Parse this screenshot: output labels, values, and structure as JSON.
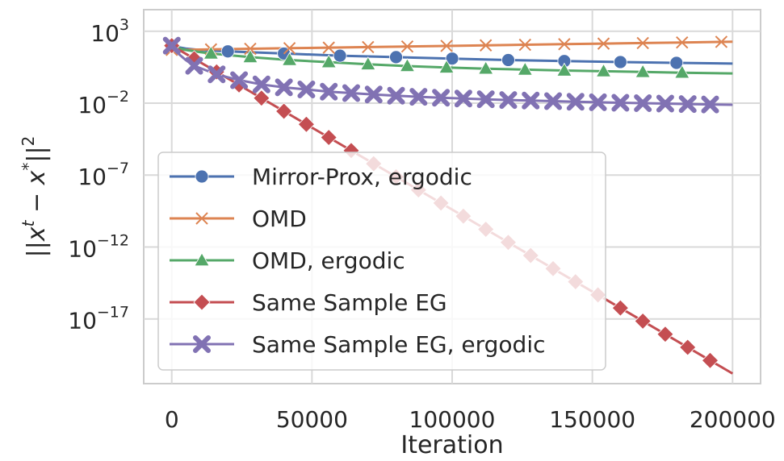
{
  "chart_data": {
    "type": "line",
    "title": "",
    "xlabel": "Iteration",
    "ylabel": "||x^t − x^*||^2",
    "x_ticks": [
      "0",
      "50000",
      "100000",
      "150000",
      "200000"
    ],
    "y_ticks": [
      {
        "base": "10",
        "exp": "3"
      },
      {
        "base": "10",
        "exp": "−2"
      },
      {
        "base": "10",
        "exp": "−7"
      },
      {
        "base": "10",
        "exp": "−12"
      },
      {
        "base": "10",
        "exp": "−17"
      }
    ],
    "xlim": [
      -10000,
      210000
    ],
    "ylim_log10": [
      -21.5,
      4.5
    ],
    "yscale": "log",
    "grid": true,
    "legend_position": "center-left",
    "series": [
      {
        "name": "Mirror-Prox, ergodic",
        "color": "#4c72b0",
        "marker": "circle",
        "x": [
          0,
          2000,
          5000,
          10000,
          20000,
          40000,
          60000,
          80000,
          100000,
          120000,
          140000,
          160000,
          180000,
          200000
        ],
        "log10_y": [
          2.0,
          1.9,
          1.8,
          1.7,
          1.6,
          1.45,
          1.3,
          1.2,
          1.1,
          1.0,
          0.93,
          0.86,
          0.8,
          0.75
        ],
        "marker_x": [
          0,
          20000,
          40000,
          60000,
          80000,
          100000,
          120000,
          140000,
          160000,
          180000
        ]
      },
      {
        "name": "OMD",
        "color": "#dd8452",
        "marker": "x",
        "x": [
          0,
          14000,
          28000,
          42000,
          56000,
          70000,
          84000,
          98000,
          112000,
          126000,
          140000,
          154000,
          168000,
          182000,
          196000,
          200000
        ],
        "log10_y": [
          1.7,
          1.74,
          1.78,
          1.82,
          1.86,
          1.9,
          1.94,
          1.98,
          2.02,
          2.06,
          2.1,
          2.14,
          2.18,
          2.22,
          2.26,
          2.27
        ],
        "marker_x": [
          0,
          14000,
          28000,
          42000,
          56000,
          70000,
          84000,
          98000,
          112000,
          126000,
          140000,
          154000,
          168000,
          182000,
          196000
        ]
      },
      {
        "name": "OMD, ergodic",
        "color": "#55a868",
        "marker": "triangle",
        "x": [
          0,
          2000,
          5000,
          10000,
          14000,
          28000,
          42000,
          56000,
          70000,
          84000,
          98000,
          112000,
          126000,
          140000,
          154000,
          168000,
          182000,
          200000
        ],
        "log10_y": [
          2.0,
          1.85,
          1.7,
          1.55,
          1.45,
          1.2,
          1.0,
          0.85,
          0.7,
          0.58,
          0.48,
          0.4,
          0.33,
          0.27,
          0.22,
          0.17,
          0.12,
          0.07
        ],
        "marker_x": [
          0,
          14000,
          28000,
          42000,
          56000,
          70000,
          84000,
          98000,
          112000,
          126000,
          140000,
          154000,
          168000,
          182000
        ]
      },
      {
        "name": "Same Sample EG",
        "color": "#c44e52",
        "marker": "diamond",
        "x": [
          0,
          200000
        ],
        "log10_y": [
          2.0,
          -20.8
        ],
        "marker_x": [
          0,
          8000,
          16000,
          24000,
          32000,
          40000,
          48000,
          56000,
          64000,
          72000,
          80000,
          88000,
          96000,
          104000,
          112000,
          120000,
          128000,
          136000,
          144000,
          152000,
          160000,
          168000,
          176000,
          184000,
          192000
        ]
      },
      {
        "name": "Same Sample EG, ergodic",
        "color": "#8172b3",
        "marker": "plus",
        "x": [
          0,
          2000,
          5000,
          8000,
          16000,
          24000,
          32000,
          40000,
          48000,
          56000,
          64000,
          72000,
          80000,
          88000,
          96000,
          104000,
          112000,
          120000,
          128000,
          136000,
          144000,
          152000,
          160000,
          168000,
          176000,
          184000,
          192000,
          200000
        ],
        "log10_y": [
          2.0,
          1.5,
          1.0,
          0.6,
          0.0,
          -0.4,
          -0.7,
          -0.9,
          -1.05,
          -1.2,
          -1.3,
          -1.4,
          -1.48,
          -1.56,
          -1.62,
          -1.68,
          -1.73,
          -1.78,
          -1.82,
          -1.86,
          -1.9,
          -1.94,
          -1.97,
          -2.0,
          -2.03,
          -2.06,
          -2.09,
          -2.11
        ],
        "marker_x": [
          0,
          8000,
          16000,
          24000,
          32000,
          40000,
          48000,
          56000,
          64000,
          72000,
          80000,
          88000,
          96000,
          104000,
          112000,
          120000,
          128000,
          136000,
          144000,
          152000,
          160000,
          168000,
          176000,
          184000,
          192000
        ]
      }
    ]
  }
}
